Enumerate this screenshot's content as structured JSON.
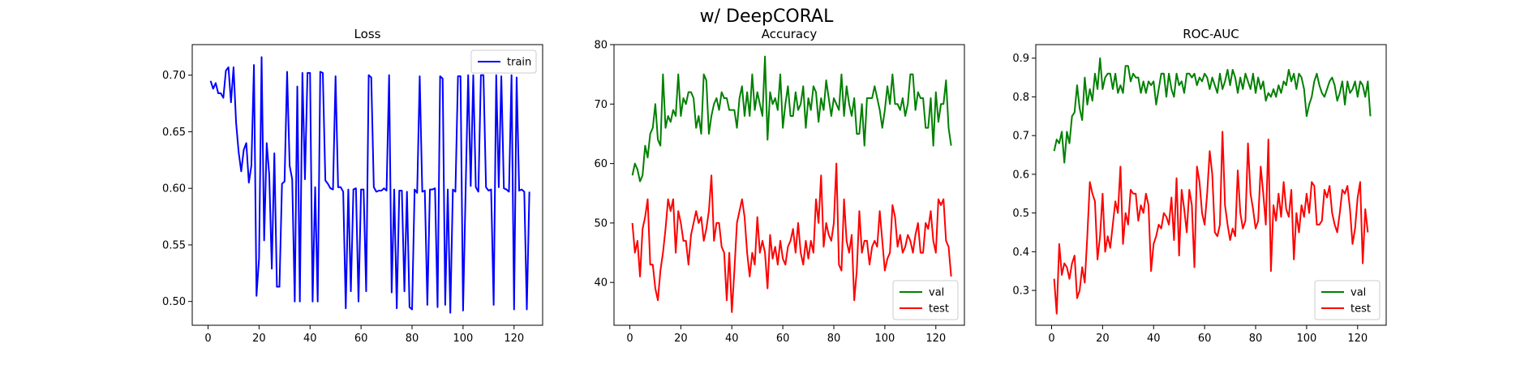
{
  "figure": {
    "suptitle": "w/ DeepCORAL"
  },
  "chart_data": [
    {
      "type": "line",
      "title": "Loss",
      "xlabel": "",
      "ylabel": "",
      "xlim": [
        -6.2,
        131.2
      ],
      "ylim": [
        0.479,
        0.727
      ],
      "xticks": [
        0,
        20,
        40,
        60,
        80,
        100,
        120
      ],
      "yticks": [
        0.5,
        0.55,
        0.6,
        0.65,
        0.7
      ],
      "ytick_labels": [
        "0.50",
        "0.55",
        "0.60",
        "0.65",
        "0.70"
      ],
      "legend": "upper right",
      "series": [
        {
          "name": "train",
          "color": "#0000ff",
          "x_start": 1,
          "values": [
            0.695,
            0.688,
            0.693,
            0.684,
            0.684,
            0.68,
            0.704,
            0.707,
            0.676,
            0.707,
            0.658,
            0.632,
            0.615,
            0.634,
            0.64,
            0.605,
            0.62,
            0.709,
            0.505,
            0.538,
            0.716,
            0.554,
            0.64,
            0.612,
            0.529,
            0.631,
            0.513,
            0.513,
            0.604,
            0.606,
            0.703,
            0.62,
            0.608,
            0.5,
            0.69,
            0.5,
            0.702,
            0.608,
            0.702,
            0.702,
            0.5,
            0.601,
            0.5,
            0.703,
            0.702,
            0.607,
            0.604,
            0.6,
            0.599,
            0.699,
            0.601,
            0.601,
            0.597,
            0.494,
            0.599,
            0.509,
            0.599,
            0.6,
            0.5,
            0.599,
            0.599,
            0.509,
            0.7,
            0.698,
            0.601,
            0.597,
            0.598,
            0.598,
            0.6,
            0.598,
            0.7,
            0.508,
            0.599,
            0.494,
            0.598,
            0.598,
            0.509,
            0.597,
            0.495,
            0.493,
            0.599,
            0.596,
            0.699,
            0.597,
            0.598,
            0.497,
            0.599,
            0.599,
            0.6,
            0.495,
            0.699,
            0.697,
            0.497,
            0.599,
            0.49,
            0.599,
            0.597,
            0.699,
            0.699,
            0.492,
            0.598,
            0.7,
            0.602,
            0.7,
            0.601,
            0.597,
            0.7,
            0.7,
            0.601,
            0.598,
            0.599,
            0.497,
            0.7,
            0.601,
            0.699,
            0.6,
            0.599,
            0.597,
            0.7,
            0.493,
            0.698,
            0.598,
            0.599,
            0.597,
            0.493,
            0.597
          ]
        }
      ]
    },
    {
      "type": "line",
      "title": "Accuracy",
      "xlabel": "",
      "ylabel": "",
      "xlim": [
        -6.2,
        131.2
      ],
      "ylim": [
        32.8,
        80.0
      ],
      "xticks": [
        0,
        20,
        40,
        60,
        80,
        100,
        120
      ],
      "yticks": [
        40,
        50,
        60,
        70,
        80
      ],
      "ytick_labels": [
        "40",
        "50",
        "60",
        "70",
        "80"
      ],
      "legend": "lower right",
      "series": [
        {
          "name": "val",
          "color": "#008000",
          "x_start": 1,
          "values": [
            58,
            60,
            59,
            57,
            58,
            63,
            61,
            65,
            66,
            70,
            64,
            63,
            75,
            66,
            68,
            67,
            69,
            68,
            75,
            68,
            71,
            70,
            72,
            72,
            71,
            66,
            68,
            65,
            75,
            74,
            65,
            68,
            70,
            71,
            69,
            72,
            71,
            71,
            69,
            69,
            69,
            66,
            71,
            73,
            68,
            72,
            68,
            75,
            69,
            72,
            70,
            68,
            78,
            64,
            72,
            70,
            71,
            69,
            75,
            66,
            70,
            73,
            68,
            68,
            72,
            69,
            70,
            73,
            66,
            71,
            69,
            73,
            72,
            67,
            71,
            69,
            74,
            71,
            68,
            71,
            70,
            69,
            75,
            68,
            73,
            70,
            68,
            71,
            65,
            65,
            70,
            63,
            71,
            71,
            71,
            73,
            71,
            69,
            66,
            69,
            73,
            70,
            75,
            70,
            70,
            69,
            71,
            68,
            70,
            75,
            75,
            69,
            72,
            71,
            71,
            66,
            66,
            71,
            63,
            72,
            67,
            70,
            70,
            74,
            66,
            63
          ]
        },
        {
          "name": "test",
          "color": "#ff0000",
          "x_start": 1,
          "values": [
            50,
            45,
            47,
            41,
            49,
            51,
            54,
            43,
            43,
            39,
            37,
            42,
            45,
            49,
            54,
            52,
            54,
            45,
            52,
            50,
            47,
            47,
            43,
            48,
            50,
            52,
            50,
            51,
            47,
            49,
            52,
            58,
            47,
            50,
            50,
            46,
            45,
            37,
            45,
            35,
            42,
            50,
            52,
            54,
            51,
            45,
            41,
            45,
            43,
            51,
            45,
            47,
            45,
            39,
            48,
            44,
            46,
            43,
            47,
            44,
            43,
            46,
            47,
            49,
            45,
            50,
            45,
            43,
            47,
            44,
            47,
            45,
            54,
            50,
            58,
            46,
            50,
            48,
            47,
            50,
            60,
            43,
            42,
            54,
            47,
            45,
            48,
            37,
            42,
            52,
            45,
            47,
            47,
            43,
            46,
            47,
            46,
            52,
            47,
            42,
            44,
            45,
            53,
            51,
            46,
            48,
            45,
            46,
            48,
            47,
            45,
            48,
            50,
            45,
            45,
            50,
            49,
            52,
            47,
            45,
            54,
            53,
            54,
            47,
            46,
            41
          ]
        }
      ]
    },
    {
      "type": "line",
      "title": "ROC-AUC",
      "xlabel": "",
      "ylabel": "",
      "xlim": [
        -6.2,
        131.2
      ],
      "ylim": [
        0.21,
        0.935
      ],
      "xticks": [
        0,
        20,
        40,
        60,
        80,
        100,
        120
      ],
      "yticks": [
        0.3,
        0.4,
        0.5,
        0.6,
        0.7,
        0.8,
        0.9
      ],
      "ytick_labels": [
        "0.3",
        "0.4",
        "0.5",
        "0.6",
        "0.7",
        "0.8",
        "0.9"
      ],
      "legend": "lower right",
      "series": [
        {
          "name": "val",
          "color": "#008000",
          "x_start": 1,
          "values": [
            0.66,
            0.69,
            0.68,
            0.71,
            0.63,
            0.71,
            0.68,
            0.75,
            0.76,
            0.83,
            0.77,
            0.74,
            0.85,
            0.78,
            0.82,
            0.79,
            0.86,
            0.82,
            0.9,
            0.82,
            0.85,
            0.86,
            0.86,
            0.82,
            0.86,
            0.81,
            0.83,
            0.81,
            0.88,
            0.88,
            0.84,
            0.86,
            0.85,
            0.85,
            0.81,
            0.84,
            0.81,
            0.84,
            0.83,
            0.84,
            0.78,
            0.82,
            0.86,
            0.86,
            0.8,
            0.86,
            0.82,
            0.8,
            0.86,
            0.83,
            0.84,
            0.81,
            0.86,
            0.86,
            0.85,
            0.86,
            0.83,
            0.85,
            0.84,
            0.86,
            0.85,
            0.82,
            0.85,
            0.83,
            0.81,
            0.86,
            0.82,
            0.84,
            0.87,
            0.83,
            0.87,
            0.85,
            0.81,
            0.85,
            0.82,
            0.86,
            0.84,
            0.82,
            0.86,
            0.81,
            0.85,
            0.82,
            0.84,
            0.79,
            0.81,
            0.8,
            0.82,
            0.8,
            0.83,
            0.81,
            0.84,
            0.83,
            0.87,
            0.84,
            0.86,
            0.82,
            0.86,
            0.85,
            0.82,
            0.75,
            0.78,
            0.8,
            0.84,
            0.86,
            0.83,
            0.81,
            0.8,
            0.82,
            0.84,
            0.85,
            0.83,
            0.79,
            0.81,
            0.84,
            0.78,
            0.84,
            0.81,
            0.82,
            0.84,
            0.8,
            0.84,
            0.83,
            0.8,
            0.84,
            0.75
          ]
        },
        {
          "name": "test",
          "color": "#ff0000",
          "x_start": 1,
          "values": [
            0.33,
            0.24,
            0.42,
            0.34,
            0.37,
            0.36,
            0.33,
            0.37,
            0.39,
            0.28,
            0.3,
            0.36,
            0.32,
            0.44,
            0.58,
            0.55,
            0.53,
            0.38,
            0.44,
            0.55,
            0.4,
            0.44,
            0.41,
            0.47,
            0.53,
            0.5,
            0.62,
            0.42,
            0.5,
            0.47,
            0.56,
            0.55,
            0.55,
            0.48,
            0.52,
            0.5,
            0.55,
            0.52,
            0.35,
            0.42,
            0.44,
            0.47,
            0.46,
            0.5,
            0.49,
            0.47,
            0.54,
            0.43,
            0.59,
            0.39,
            0.56,
            0.51,
            0.45,
            0.56,
            0.52,
            0.36,
            0.62,
            0.58,
            0.5,
            0.47,
            0.55,
            0.66,
            0.6,
            0.45,
            0.44,
            0.47,
            0.71,
            0.52,
            0.47,
            0.43,
            0.46,
            0.44,
            0.61,
            0.5,
            0.46,
            0.48,
            0.68,
            0.55,
            0.51,
            0.46,
            0.48,
            0.62,
            0.55,
            0.47,
            0.69,
            0.35,
            0.52,
            0.48,
            0.55,
            0.49,
            0.58,
            0.51,
            0.49,
            0.56,
            0.38,
            0.5,
            0.45,
            0.52,
            0.49,
            0.55,
            0.5,
            0.58,
            0.57,
            0.47,
            0.47,
            0.48,
            0.56,
            0.54,
            0.57,
            0.5,
            0.47,
            0.45,
            0.5,
            0.56,
            0.55,
            0.57,
            0.51,
            0.42,
            0.46,
            0.54,
            0.58,
            0.37,
            0.51,
            0.45
          ]
        }
      ]
    }
  ]
}
